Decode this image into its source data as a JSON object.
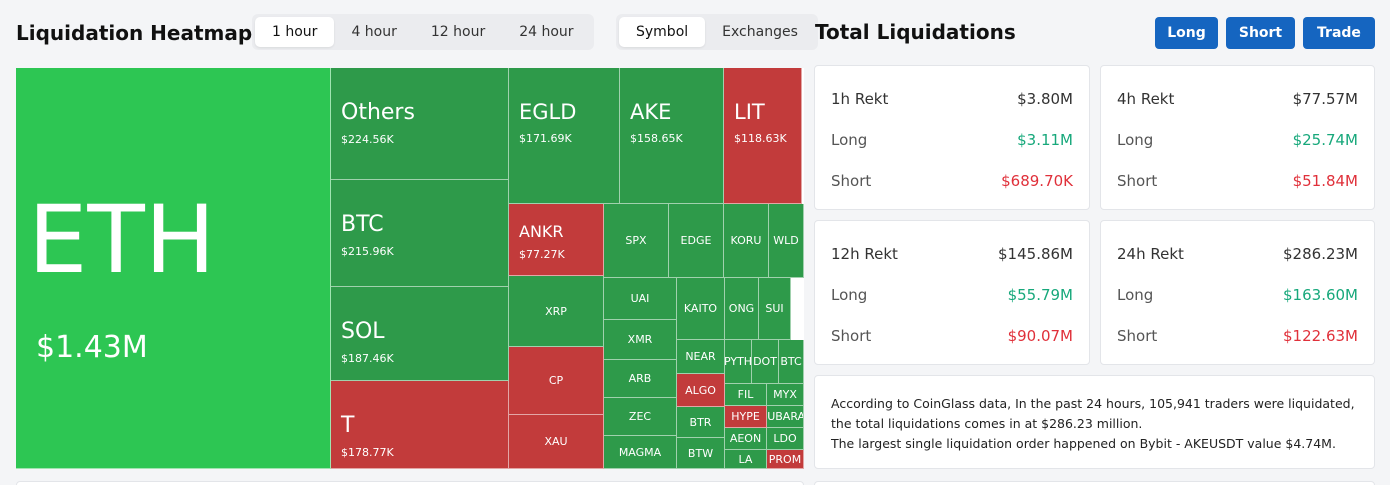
{
  "heatmap": {
    "title": "Liquidation Heatmap",
    "timeframes": [
      "1 hour",
      "4 hour",
      "12 hour",
      "24 hour"
    ],
    "active_timeframe": "1 hour",
    "groupings": [
      "Symbol",
      "Exchanges"
    ],
    "active_grouping": "Symbol",
    "colors": {
      "long": "#2dc653",
      "short": "#c23b3b",
      "mid": "#2e9a4a"
    },
    "tiles": [
      {
        "symbol": "ETH",
        "value": "$1.43M",
        "side": "long"
      },
      {
        "symbol": "Others",
        "value": "$224.56K",
        "side": "mid"
      },
      {
        "symbol": "EGLD",
        "value": "$171.69K",
        "side": "mid"
      },
      {
        "symbol": "AKE",
        "value": "$158.65K",
        "side": "mid"
      },
      {
        "symbol": "LIT",
        "value": "$118.63K",
        "side": "short"
      },
      {
        "symbol": "BTC",
        "value": "$215.96K",
        "side": "mid"
      },
      {
        "symbol": "ANKR",
        "value": "$77.27K",
        "side": "short"
      },
      {
        "symbol": "SPX",
        "side": "mid"
      },
      {
        "symbol": "EDGE",
        "side": "mid"
      },
      {
        "symbol": "KORU",
        "side": "mid"
      },
      {
        "symbol": "WLD",
        "side": "mid"
      },
      {
        "symbol": "SOL",
        "value": "$187.46K",
        "side": "mid"
      },
      {
        "symbol": "XRP",
        "side": "mid"
      },
      {
        "symbol": "UAI",
        "side": "mid"
      },
      {
        "symbol": "KAITO",
        "side": "mid"
      },
      {
        "symbol": "ONG",
        "side": "mid"
      },
      {
        "symbol": "SUI",
        "side": "mid"
      },
      {
        "symbol": "XMR",
        "side": "mid"
      },
      {
        "symbol": "NEAR",
        "side": "mid"
      },
      {
        "symbol": "PYTH",
        "side": "mid"
      },
      {
        "symbol": "DOT",
        "side": "mid"
      },
      {
        "symbol": "BTC",
        "side": "mid"
      },
      {
        "symbol": "CP",
        "side": "short"
      },
      {
        "symbol": "ARB",
        "side": "mid"
      },
      {
        "symbol": "ALGO",
        "side": "short"
      },
      {
        "symbol": "FIL",
        "side": "mid"
      },
      {
        "symbol": "MYX",
        "side": "mid"
      },
      {
        "symbol": "T",
        "value": "$178.77K",
        "side": "short"
      },
      {
        "symbol": "ZEC",
        "side": "mid"
      },
      {
        "symbol": "BTR",
        "side": "mid"
      },
      {
        "symbol": "HYPE",
        "side": "short"
      },
      {
        "symbol": "MUBARAK",
        "side": "mid"
      },
      {
        "symbol": "AEON",
        "side": "mid"
      },
      {
        "symbol": "LDO",
        "side": "mid"
      },
      {
        "symbol": "XAU",
        "side": "short"
      },
      {
        "symbol": "MAGMA",
        "side": "mid"
      },
      {
        "symbol": "BTW",
        "side": "mid"
      },
      {
        "symbol": "LA",
        "side": "mid"
      },
      {
        "symbol": "PROM",
        "side": "short"
      }
    ]
  },
  "totals": {
    "title": "Total Liquidations",
    "buttons": [
      "Long",
      "Short",
      "Trade"
    ],
    "long_label": "Long",
    "short_label": "Short",
    "cards": [
      {
        "label": "1h Rekt",
        "total": "$3.80M",
        "long": "$3.11M",
        "short": "$689.70K"
      },
      {
        "label": "4h Rekt",
        "total": "$77.57M",
        "long": "$25.74M",
        "short": "$51.84M"
      },
      {
        "label": "12h Rekt",
        "total": "$145.86M",
        "long": "$55.79M",
        "short": "$90.07M"
      },
      {
        "label": "24h Rekt",
        "total": "$286.23M",
        "long": "$163.60M",
        "short": "$122.63M"
      }
    ],
    "summary_line1": "According to CoinGlass data, In the past 24 hours, 105,941 traders were liquidated, the total liquidations comes in at $286.23 million.",
    "summary_line2": "The largest single liquidation order happened on Bybit - AKEUSDT value $4.74M."
  }
}
